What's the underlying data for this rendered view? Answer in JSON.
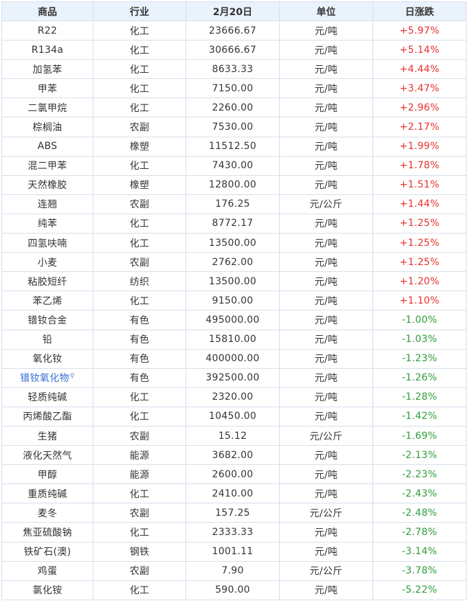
{
  "headers": {
    "name": "商品",
    "industry": "行业",
    "price": "2月20日",
    "unit": "单位",
    "change": "日涨跌"
  },
  "link_icon": "search-icon",
  "colors": {
    "up": "#e8302c",
    "down": "#2e9c3a",
    "link": "#3b6fd4",
    "header_bg": "#eaf2fc",
    "border": "#d6dfeb"
  },
  "rows": [
    {
      "name": "R22",
      "industry": "化工",
      "price": "23666.67",
      "unit": "元/吨",
      "change": "+5.97%"
    },
    {
      "name": "R134a",
      "industry": "化工",
      "price": "30666.67",
      "unit": "元/吨",
      "change": "+5.14%"
    },
    {
      "name": "加氢苯",
      "industry": "化工",
      "price": "8633.33",
      "unit": "元/吨",
      "change": "+4.44%"
    },
    {
      "name": "甲苯",
      "industry": "化工",
      "price": "7150.00",
      "unit": "元/吨",
      "change": "+3.47%"
    },
    {
      "name": "二氯甲烷",
      "industry": "化工",
      "price": "2260.00",
      "unit": "元/吨",
      "change": "+2.96%"
    },
    {
      "name": "棕榈油",
      "industry": "农副",
      "price": "7530.00",
      "unit": "元/吨",
      "change": "+2.17%"
    },
    {
      "name": "ABS",
      "industry": "橡塑",
      "price": "11512.50",
      "unit": "元/吨",
      "change": "+1.99%"
    },
    {
      "name": "混二甲苯",
      "industry": "化工",
      "price": "7430.00",
      "unit": "元/吨",
      "change": "+1.78%"
    },
    {
      "name": "天然橡胶",
      "industry": "橡塑",
      "price": "12800.00",
      "unit": "元/吨",
      "change": "+1.51%"
    },
    {
      "name": "连翘",
      "industry": "农副",
      "price": "176.25",
      "unit": "元/公斤",
      "change": "+1.44%"
    },
    {
      "name": "纯苯",
      "industry": "化工",
      "price": "8772.17",
      "unit": "元/吨",
      "change": "+1.25%"
    },
    {
      "name": "四氢呋喃",
      "industry": "化工",
      "price": "13500.00",
      "unit": "元/吨",
      "change": "+1.25%"
    },
    {
      "name": "小麦",
      "industry": "农副",
      "price": "2762.00",
      "unit": "元/吨",
      "change": "+1.25%"
    },
    {
      "name": "粘胶短纤",
      "industry": "纺织",
      "price": "13500.00",
      "unit": "元/吨",
      "change": "+1.20%"
    },
    {
      "name": "苯乙烯",
      "industry": "化工",
      "price": "9150.00",
      "unit": "元/吨",
      "change": "+1.10%"
    },
    {
      "name": "镨钕合金",
      "industry": "有色",
      "price": "495000.00",
      "unit": "元/吨",
      "change": "-1.00%"
    },
    {
      "name": "铅",
      "industry": "有色",
      "price": "15810.00",
      "unit": "元/吨",
      "change": "-1.03%"
    },
    {
      "name": "氧化钕",
      "industry": "有色",
      "price": "400000.00",
      "unit": "元/吨",
      "change": "-1.23%"
    },
    {
      "name": "镨钕氧化物",
      "industry": "有色",
      "price": "392500.00",
      "unit": "元/吨",
      "change": "-1.26%",
      "linked": true
    },
    {
      "name": "轻质纯碱",
      "industry": "化工",
      "price": "2320.00",
      "unit": "元/吨",
      "change": "-1.28%"
    },
    {
      "name": "丙烯酸乙酯",
      "industry": "化工",
      "price": "10450.00",
      "unit": "元/吨",
      "change": "-1.42%"
    },
    {
      "name": "生猪",
      "industry": "农副",
      "price": "15.12",
      "unit": "元/公斤",
      "change": "-1.69%"
    },
    {
      "name": "液化天然气",
      "industry": "能源",
      "price": "3682.00",
      "unit": "元/吨",
      "change": "-2.13%"
    },
    {
      "name": "甲醇",
      "industry": "能源",
      "price": "2600.00",
      "unit": "元/吨",
      "change": "-2.23%"
    },
    {
      "name": "重质纯碱",
      "industry": "化工",
      "price": "2410.00",
      "unit": "元/吨",
      "change": "-2.43%"
    },
    {
      "name": "麦冬",
      "industry": "农副",
      "price": "157.25",
      "unit": "元/公斤",
      "change": "-2.48%"
    },
    {
      "name": "焦亚硫酸钠",
      "industry": "化工",
      "price": "2333.33",
      "unit": "元/吨",
      "change": "-2.78%"
    },
    {
      "name": "铁矿石(澳)",
      "industry": "钢铁",
      "price": "1001.11",
      "unit": "元/吨",
      "change": "-3.14%"
    },
    {
      "name": "鸡蛋",
      "industry": "农副",
      "price": "7.90",
      "unit": "元/公斤",
      "change": "-3.78%"
    },
    {
      "name": "氯化铵",
      "industry": "化工",
      "price": "590.00",
      "unit": "元/吨",
      "change": "-5.22%"
    }
  ]
}
